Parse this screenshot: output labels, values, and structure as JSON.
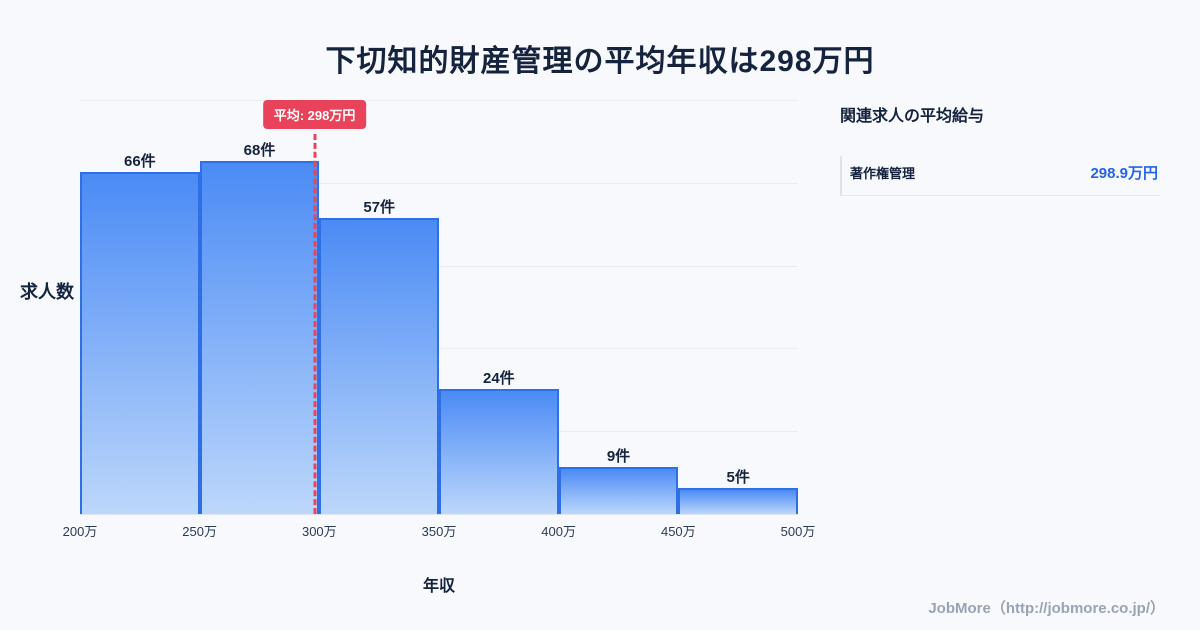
{
  "page": {
    "title": "下切知的財産管理の平均年収は298万円",
    "footer": "JobMore（http://jobmore.co.jp/）"
  },
  "chart_data": {
    "type": "bar",
    "title": "下切知的財産管理の平均年収は298万円",
    "xlabel": "年収",
    "ylabel": "求人数",
    "categories": [
      "200万-250万",
      "250万-300万",
      "300万-350万",
      "350万-400万",
      "400万-450万",
      "450万-500万"
    ],
    "values": [
      66,
      68,
      57,
      24,
      9,
      5
    ],
    "bar_labels": [
      "66件",
      "68件",
      "57件",
      "24件",
      "9件",
      "5件"
    ],
    "x_ticks": [
      "200万",
      "250万",
      "300万",
      "350万",
      "400万",
      "450万",
      "500万"
    ],
    "x_range": [
      200,
      500
    ],
    "ylim": [
      0,
      80
    ],
    "grid": "horizontal",
    "legend": "none",
    "mean": {
      "value": 298,
      "label": "平均: 298万円"
    },
    "colors": {
      "bar_top": "#4b8bf5",
      "bar_bottom": "#bcd7fb",
      "bar_border": "#2e6fe6",
      "mean_line": "#e8455a",
      "value_blue": "#2563eb"
    }
  },
  "side_panel": {
    "heading": "関連求人の平均給与",
    "rows": [
      {
        "label": "著作権管理",
        "value": "298.9万円"
      }
    ]
  }
}
